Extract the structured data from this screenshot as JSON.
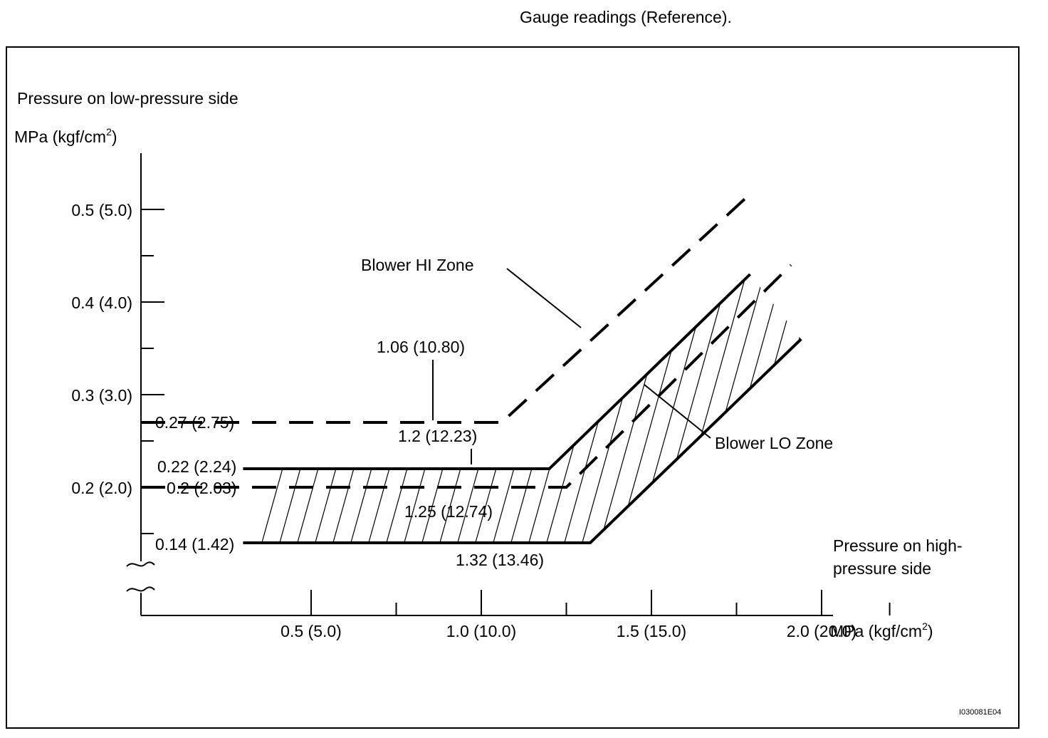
{
  "chart_data": {
    "type": "line",
    "title": "Gauge readings (Reference).",
    "ylabel": "Pressure on low-pressure side",
    "yunit": "MPa (kgf/cm",
    "xlabel": "Pressure on high-pressure side",
    "xlabel_lines": [
      "Pressure on high-",
      "pressure side"
    ],
    "xunit": "MPa (kgf/cm",
    "unit_sup": "2",
    "unit_close": ")",
    "xlim": [
      0,
      2.25
    ],
    "ylim": [
      0.1,
      0.55
    ],
    "x_ticks": [
      {
        "value": 0.5,
        "label": "0.5 (5.0)"
      },
      {
        "value": 1.0,
        "label": "1.0 (10.0)"
      },
      {
        "value": 1.5,
        "label": "1.5 (15.0)"
      },
      {
        "value": 2.0,
        "label": "2.0 (20.0)"
      }
    ],
    "x_minor_ticks": [
      0.75,
      1.25,
      1.75,
      2.2
    ],
    "y_ticks": [
      {
        "value": 0.2,
        "label": "0.2 (2.0)"
      },
      {
        "value": 0.3,
        "label": "0.3 (3.0)"
      },
      {
        "value": 0.4,
        "label": "0.4 (4.0)"
      },
      {
        "value": 0.5,
        "label": "0.5 (5.0)"
      }
    ],
    "y_minor_ticks": [
      0.15,
      0.25,
      0.35,
      0.45
    ],
    "series": [
      {
        "id": "hi-upper",
        "dashed": true,
        "points": [
          [
            0.0,
            0.27
          ],
          [
            1.06,
            0.27
          ],
          [
            1.8,
            0.52
          ]
        ]
      },
      {
        "id": "lo-upper",
        "dashed": false,
        "points": [
          [
            0.3,
            0.22
          ],
          [
            1.2,
            0.22
          ],
          [
            1.79,
            0.43
          ]
        ]
      },
      {
        "id": "hi-lower",
        "dashed": true,
        "points": [
          [
            0.0,
            0.2
          ],
          [
            1.25,
            0.2
          ],
          [
            1.91,
            0.44
          ]
        ]
      },
      {
        "id": "lo-lower",
        "dashed": false,
        "points": [
          [
            0.3,
            0.14
          ],
          [
            1.32,
            0.14
          ],
          [
            1.94,
            0.36
          ]
        ]
      }
    ],
    "annotations": [
      {
        "id": "y-val-027",
        "text": "0.27 (2.75)"
      },
      {
        "id": "y-val-022",
        "text": "0.22 (2.24)"
      },
      {
        "id": "y-val-020",
        "text": "0.2 (2.03)"
      },
      {
        "id": "y-val-014",
        "text": "0.14 (1.42)"
      },
      {
        "id": "x-val-106",
        "text": "1.06 (10.80)"
      },
      {
        "id": "x-val-12",
        "text": "1.2 (12.23)"
      },
      {
        "id": "x-val-125",
        "text": "1.25 (12.74)"
      },
      {
        "id": "x-val-132",
        "text": "1.32 (13.46)"
      },
      {
        "id": "zone-hi",
        "text": "Blower HI Zone"
      },
      {
        "id": "zone-lo",
        "text": "Blower LO Zone"
      }
    ],
    "figure_code": "I030081E04",
    "grid": false,
    "legend": "none"
  }
}
